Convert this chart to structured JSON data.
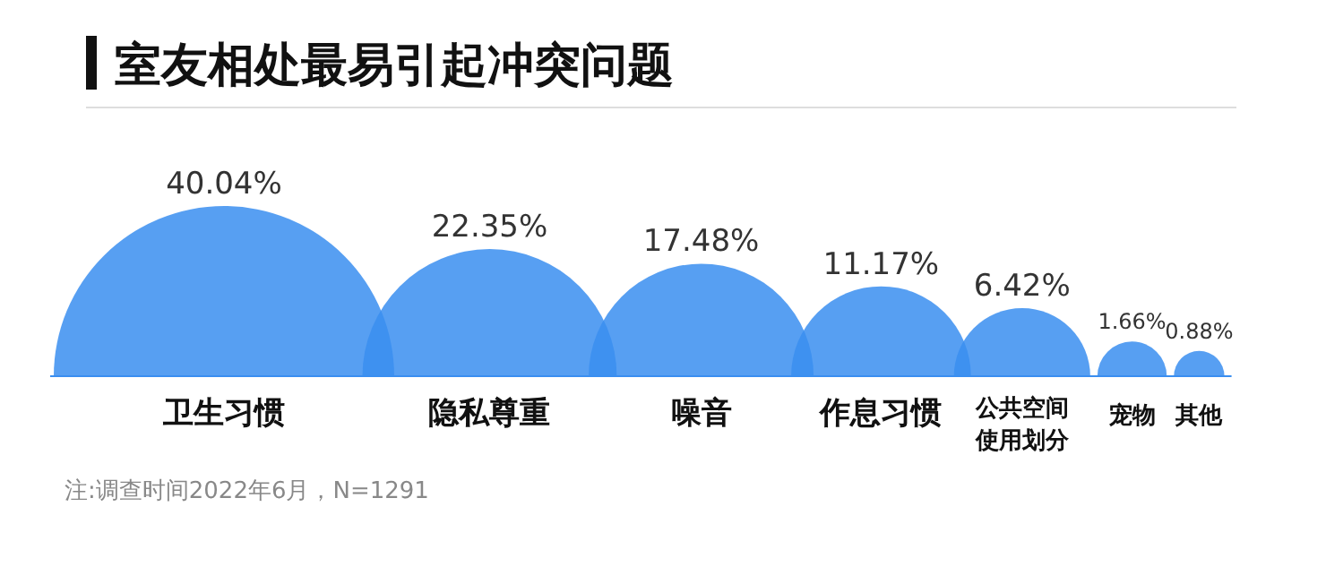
{
  "chart_data": {
    "type": "other",
    "title": "室友相处最易引起冲突问题",
    "categories": [
      "卫生习惯",
      "隐私尊重",
      "噪音",
      "作息习惯",
      "公共空间使用划分",
      "宠物",
      "其他"
    ],
    "values": [
      40.04,
      22.35,
      17.48,
      11.17,
      6.42,
      1.66,
      0.88
    ],
    "value_labels": [
      "40.04%",
      "22.35%",
      "17.48%",
      "11.17%",
      "6.42%",
      "1.66%",
      "0.88%"
    ],
    "colors": [
      "#3a8ef0",
      "#3a8ef0",
      "#3a8ef0",
      "#3a8ef0",
      "#3a8ef0",
      "#3a8ef0",
      "#3a8ef0"
    ],
    "annotations": [
      "注:调查时间2022年6月，N=1291"
    ]
  }
}
